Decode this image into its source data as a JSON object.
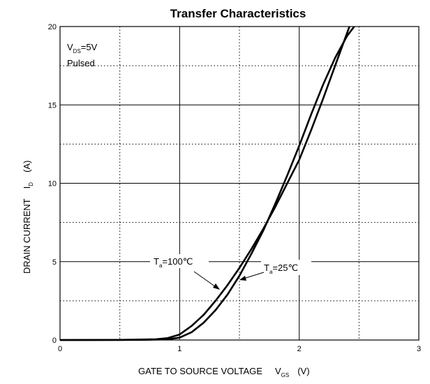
{
  "chart_data": {
    "type": "line",
    "title": "Transfer Characteristics",
    "xlabel": {
      "main": "GATE TO SOURCE VOLTAGE",
      "symbol": "V",
      "subscript": "GS",
      "unit": "(V)"
    },
    "ylabel": {
      "main": "DRAIN CURRENT",
      "symbol": "I",
      "subscript": "D",
      "unit": "(A)"
    },
    "xlim": [
      0,
      3
    ],
    "ylim": [
      0,
      20
    ],
    "xticks": [
      "0",
      "1",
      "2",
      "3"
    ],
    "yticks": [
      "0",
      "5",
      "10",
      "15",
      "20"
    ],
    "grid": {
      "solid_x": [
        1,
        2
      ],
      "solid_y": [
        5,
        10,
        15
      ],
      "dotted_x": [
        0.5,
        1.5,
        2.5
      ],
      "dotted_y": [
        2.5,
        7.5,
        12.5,
        17.5
      ]
    },
    "conditions": {
      "vds_symbol": "V",
      "vds_subscript": "DS",
      "vds_value": "=5V",
      "mode": "Pulsed"
    },
    "series": [
      {
        "name_symbol": "T",
        "name_subscript": "a",
        "name_value": "=100℃",
        "points": [
          [
            0,
            0
          ],
          [
            0.5,
            0.01
          ],
          [
            0.8,
            0.05
          ],
          [
            0.9,
            0.12
          ],
          [
            1.0,
            0.35
          ],
          [
            1.1,
            0.9
          ],
          [
            1.2,
            1.6
          ],
          [
            1.3,
            2.5
          ],
          [
            1.4,
            3.5
          ],
          [
            1.5,
            4.6
          ],
          [
            1.6,
            5.8
          ],
          [
            1.7,
            7.1
          ],
          [
            1.8,
            8.5
          ],
          [
            1.9,
            10.0
          ],
          [
            2.0,
            11.5
          ],
          [
            2.1,
            13.4
          ],
          [
            2.2,
            15.4
          ],
          [
            2.3,
            17.5
          ],
          [
            2.42,
            20.0
          ]
        ]
      },
      {
        "name_symbol": "T",
        "name_subscript": "a",
        "name_value": "=25℃",
        "points": [
          [
            0,
            0
          ],
          [
            0.7,
            0.01
          ],
          [
            0.9,
            0.05
          ],
          [
            1.0,
            0.15
          ],
          [
            1.1,
            0.5
          ],
          [
            1.2,
            1.1
          ],
          [
            1.3,
            1.9
          ],
          [
            1.4,
            2.9
          ],
          [
            1.5,
            4.1
          ],
          [
            1.6,
            5.5
          ],
          [
            1.7,
            7.0
          ],
          [
            1.8,
            8.7
          ],
          [
            1.9,
            10.5
          ],
          [
            2.0,
            12.4
          ],
          [
            2.1,
            14.4
          ],
          [
            2.2,
            16.3
          ],
          [
            2.3,
            18.0
          ],
          [
            2.4,
            19.4
          ],
          [
            2.46,
            20.0
          ]
        ]
      }
    ]
  }
}
